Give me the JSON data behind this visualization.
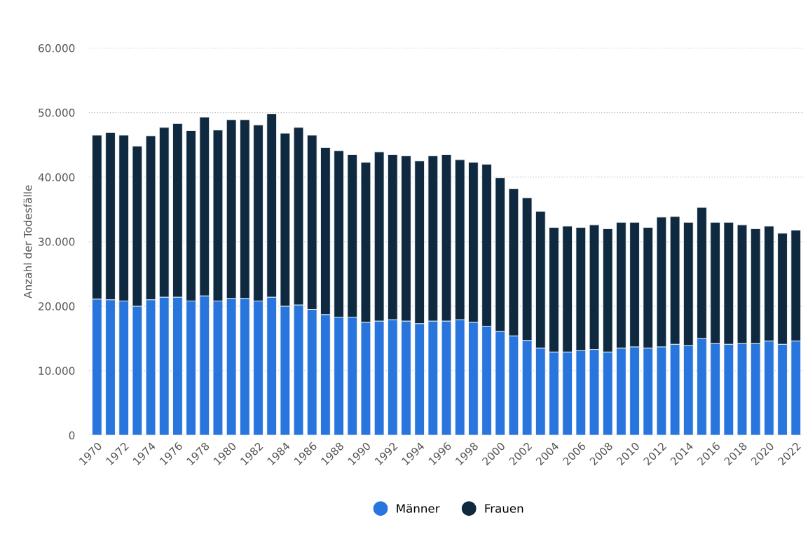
{
  "chart_data": {
    "type": "bar",
    "stacked": true,
    "ylabel": "Anzahl der Todesfälle",
    "categories": [
      "1970",
      null,
      "1972",
      null,
      "1974",
      null,
      "1976",
      null,
      "1978",
      null,
      "1980",
      null,
      "1982",
      null,
      "1984",
      null,
      "1986",
      null,
      "1988",
      null,
      "1990",
      null,
      "1992",
      null,
      "1994",
      null,
      "1996",
      null,
      "1998",
      null,
      "2000",
      null,
      "2002",
      null,
      "2004",
      null,
      "2006",
      null,
      "2008",
      null,
      "2010",
      null,
      "2012",
      null,
      "2014",
      null,
      "2016",
      null,
      "2018",
      null,
      "2020",
      null,
      "2022"
    ],
    "series": [
      {
        "name": "Männer",
        "color": "#2876dd",
        "values": [
          21100,
          21000,
          20800,
          20000,
          21000,
          21400,
          21400,
          20800,
          21600,
          20800,
          21200,
          21200,
          20800,
          21400,
          20000,
          20200,
          19500,
          18700,
          18300,
          18300,
          17500,
          17700,
          17900,
          17700,
          17300,
          17700,
          17700,
          17900,
          17500,
          16900,
          16100,
          15400,
          14700,
          13500,
          12900,
          12900,
          13100,
          13300,
          12900,
          13500,
          13700,
          13500,
          13700,
          14100,
          13900,
          15000,
          14200,
          14100,
          14200,
          14200,
          14600,
          14100,
          14600
        ]
      },
      {
        "name": "Frauen",
        "color": "#0f2a40",
        "values": [
          25400,
          25900,
          25700,
          24800,
          25400,
          26300,
          26900,
          26400,
          27700,
          26500,
          27700,
          27700,
          27300,
          28400,
          26800,
          27500,
          27000,
          25900,
          25800,
          25200,
          24800,
          26200,
          25600,
          25600,
          25200,
          25600,
          25800,
          24800,
          24800,
          25100,
          23800,
          22800,
          22100,
          21200,
          19300,
          19500,
          19100,
          19300,
          19100,
          19500,
          19300,
          18700,
          20100,
          19800,
          19100,
          20300,
          18800,
          18900,
          18400,
          17800,
          17800,
          17200,
          17200
        ]
      }
    ],
    "ylim": [
      0,
      60000
    ],
    "yticks": [
      0,
      {
        "value": 10000,
        "label": "10.000"
      },
      {
        "value": 20000,
        "label": "20.000"
      },
      {
        "value": 30000,
        "label": "30.000"
      },
      {
        "value": 40000,
        "label": "40.000"
      },
      {
        "value": 50000,
        "label": "50.000"
      },
      {
        "value": 60000,
        "label": "60.000"
      }
    ],
    "grid": "y",
    "legend": "bottom"
  }
}
